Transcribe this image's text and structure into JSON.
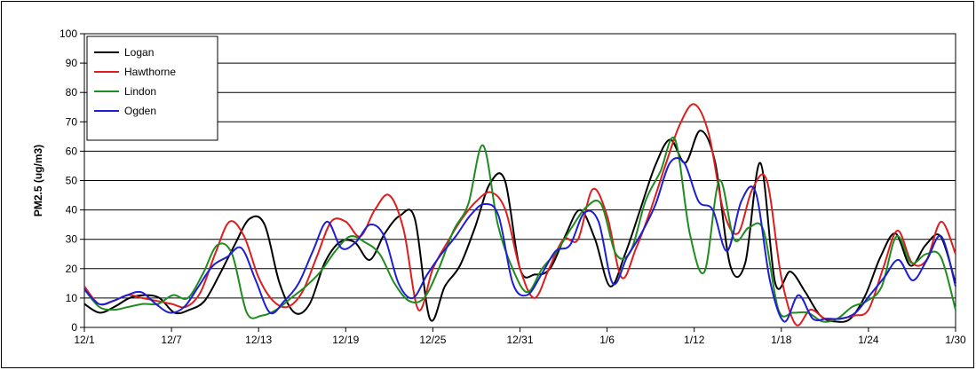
{
  "chart_data": {
    "type": "line",
    "title": "",
    "xlabel": "",
    "ylabel": "PM2.5 (ug/m3)",
    "ylim": [
      0,
      100
    ],
    "yticks": [
      0,
      10,
      20,
      30,
      40,
      50,
      60,
      70,
      80,
      90,
      100
    ],
    "xlim": [
      0,
      60
    ],
    "xtick_labels": [
      "12/1",
      "12/7",
      "12/13",
      "12/19",
      "12/25",
      "12/31",
      "1/6",
      "1/12",
      "1/18",
      "1/24",
      "1/30"
    ],
    "xtick_positions": [
      0,
      6,
      12,
      18,
      24,
      30,
      36,
      42,
      48,
      54,
      60
    ],
    "grid": true,
    "legend_placement": "top-left",
    "series": [
      {
        "name": "Logan",
        "color": "#000000",
        "values": [
          8,
          5,
          7,
          10,
          11,
          10,
          5,
          6,
          9,
          18,
          28,
          37,
          35,
          15,
          5,
          8,
          22,
          29,
          29,
          23,
          32,
          38,
          37,
          3,
          14,
          21,
          34,
          49,
          50,
          20,
          18,
          20,
          31,
          40,
          30,
          14,
          25,
          40,
          55,
          64,
          56,
          67,
          56,
          21,
          22,
          56,
          15,
          19,
          12,
          4,
          2,
          3,
          11,
          24,
          32,
          21,
          28,
          31,
          15
        ]
      },
      {
        "name": "Hawthorne",
        "color": "#dc1e1e",
        "values": [
          14,
          8,
          9,
          11,
          10,
          9,
          8,
          7,
          12,
          25,
          36,
          31,
          17,
          9,
          7,
          12,
          24,
          36,
          36,
          31,
          40,
          45,
          33,
          6,
          20,
          29,
          37,
          43,
          46,
          40,
          20,
          10,
          20,
          30,
          30,
          47,
          38,
          17,
          27,
          40,
          55,
          69,
          76,
          66,
          40,
          32,
          47,
          50,
          17,
          1,
          6,
          3,
          3,
          4,
          6,
          20,
          33,
          22,
          23,
          36,
          25
        ]
      },
      {
        "name": "Lindon",
        "color": "#1e8c1e",
        "values": [
          13,
          7,
          6,
          7,
          8,
          8,
          11,
          10,
          18,
          28,
          25,
          5,
          4,
          6,
          10,
          14,
          19,
          26,
          31,
          29,
          25,
          15,
          9,
          10,
          20,
          33,
          42,
          62,
          35,
          20,
          12,
          20,
          26,
          34,
          41,
          42,
          25,
          26,
          43,
          53,
          64,
          32,
          19,
          50,
          30,
          34,
          33,
          6,
          5,
          5,
          2,
          3,
          7,
          9,
          14,
          31,
          22,
          25,
          24,
          6
        ]
      },
      {
        "name": "Ogden",
        "color": "#1e1ed2",
        "values": [
          13,
          8,
          9,
          11,
          12,
          8,
          5,
          7,
          14,
          21,
          24,
          27,
          16,
          5,
          9,
          15,
          26,
          36,
          27,
          29,
          35,
          31,
          15,
          10,
          18,
          25,
          31,
          38,
          42,
          38,
          15,
          11,
          18,
          26,
          28,
          39,
          36,
          15,
          24,
          32,
          42,
          56,
          56,
          43,
          40,
          26,
          43,
          46,
          16,
          2,
          11,
          3,
          3,
          3,
          5,
          11,
          17,
          23,
          16,
          23,
          31,
          14
        ]
      }
    ]
  }
}
